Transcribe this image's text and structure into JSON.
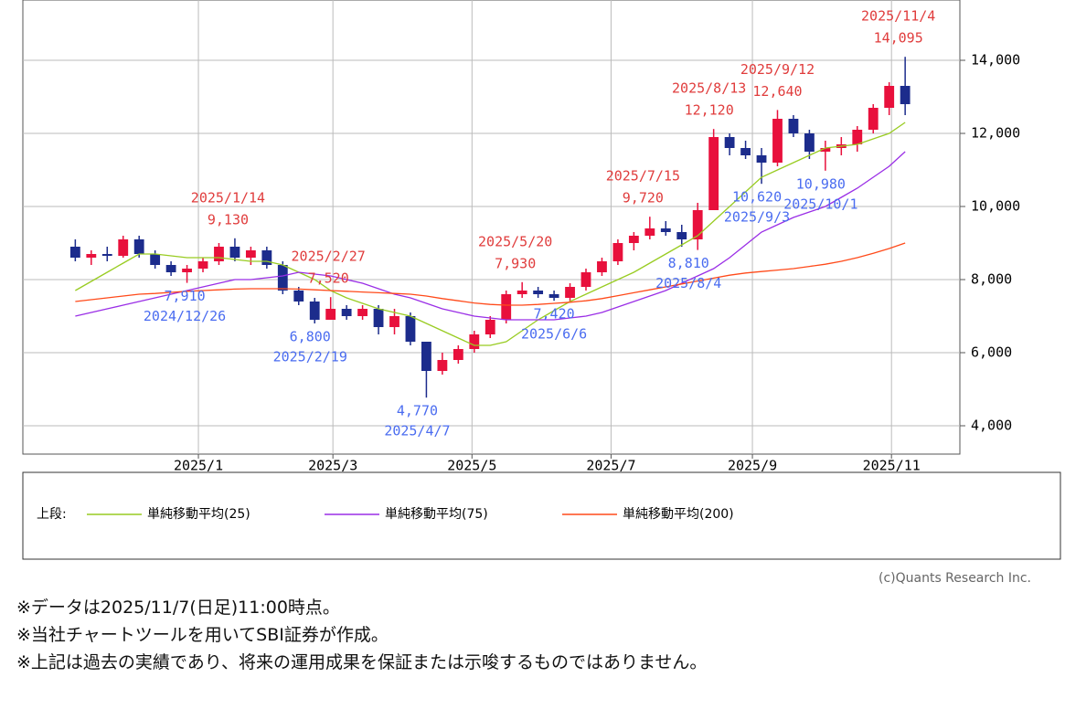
{
  "chart_data": {
    "type": "candlestick",
    "x": [
      "2024/11/8",
      "2024/11/15",
      "2024/11/22",
      "2024/11/29",
      "2024/12/6",
      "2024/12/13",
      "2024/12/20",
      "2024/12/27",
      "2025/1/3",
      "2025/1/10",
      "2025/1/17",
      "2025/1/24",
      "2025/1/31",
      "2025/2/7",
      "2025/2/14",
      "2025/2/21",
      "2025/2/28",
      "2025/3/7",
      "2025/3/14",
      "2025/3/21",
      "2025/3/28",
      "2025/4/4",
      "2025/4/11",
      "2025/4/18",
      "2025/4/25",
      "2025/5/2",
      "2025/5/9",
      "2025/5/16",
      "2025/5/23",
      "2025/5/30",
      "2025/6/6",
      "2025/6/13",
      "2025/6/20",
      "2025/6/27",
      "2025/7/4",
      "2025/7/11",
      "2025/7/18",
      "2025/7/25",
      "2025/8/1",
      "2025/8/8",
      "2025/8/15",
      "2025/8/22",
      "2025/8/29",
      "2025/9/5",
      "2025/9/12",
      "2025/9/19",
      "2025/9/26",
      "2025/10/3",
      "2025/10/10",
      "2025/10/17",
      "2025/10/24",
      "2025/10/31",
      "2025/11/7"
    ],
    "open": [
      8900,
      8600,
      8700,
      8650,
      9100,
      8700,
      8400,
      8200,
      8300,
      8500,
      8900,
      8600,
      8800,
      8400,
      7700,
      7400,
      6900,
      7200,
      7000,
      7200,
      6700,
      7000,
      6300,
      5500,
      5800,
      6100,
      6500,
      6900,
      7600,
      7700,
      7600,
      7500,
      7800,
      8200,
      8500,
      9000,
      9200,
      9400,
      9300,
      9100,
      9900,
      11900,
      11600,
      11400,
      11200,
      12400,
      12000,
      11500,
      11600,
      11700,
      12100,
      12700,
      13300
    ],
    "high": [
      9100,
      8800,
      8900,
      9200,
      9200,
      8800,
      8500,
      8400,
      8600,
      9000,
      9130,
      8900,
      8900,
      8500,
      7800,
      7500,
      7520,
      7300,
      7300,
      7300,
      7200,
      7100,
      6300,
      6000,
      6200,
      6600,
      7000,
      7700,
      7930,
      7800,
      7700,
      7900,
      8300,
      8600,
      9100,
      9300,
      9720,
      9600,
      9500,
      10100,
      12120,
      12000,
      11800,
      11600,
      12640,
      12500,
      12100,
      11800,
      11900,
      12200,
      12800,
      13400,
      14095
    ],
    "low": [
      8500,
      8400,
      8500,
      8600,
      8600,
      8300,
      8100,
      7910,
      8200,
      8400,
      8500,
      8400,
      8300,
      7600,
      7300,
      6800,
      6900,
      6900,
      6900,
      6500,
      6500,
      6200,
      4770,
      5400,
      5700,
      6000,
      6400,
      6800,
      7500,
      7500,
      7420,
      7400,
      7700,
      8100,
      8400,
      8800,
      9100,
      9200,
      8900,
      8810,
      9900,
      11400,
      11300,
      10620,
      11100,
      11900,
      11300,
      10980,
      11400,
      11500,
      12000,
      12500,
      12500
    ],
    "close": [
      8600,
      8700,
      8650,
      9100,
      8700,
      8400,
      8200,
      8300,
      8500,
      8900,
      8600,
      8800,
      8400,
      7700,
      7400,
      6900,
      7200,
      7000,
      7200,
      6700,
      7000,
      6300,
      5500,
      5800,
      6100,
      6500,
      6900,
      7600,
      7700,
      7600,
      7500,
      7800,
      8200,
      8500,
      9000,
      9200,
      9400,
      9300,
      9100,
      9900,
      11900,
      11600,
      11400,
      11200,
      12400,
      12000,
      11500,
      11600,
      11700,
      12100,
      12700,
      13300,
      12800
    ],
    "up_color": "#e8103c",
    "down_color": "#1c2c8c",
    "series": [
      {
        "name": "単純移動平均(25)",
        "color": "#99cc22",
        "values": [
          7700,
          7950,
          8200,
          8450,
          8700,
          8700,
          8650,
          8600,
          8600,
          8600,
          8550,
          8500,
          8500,
          8400,
          8200,
          8000,
          7700,
          7500,
          7350,
          7200,
          7100,
          7000,
          6800,
          6600,
          6400,
          6200,
          6200,
          6300,
          6600,
          6900,
          7150,
          7400,
          7600,
          7800,
          8000,
          8200,
          8450,
          8700,
          8950,
          9200,
          9600,
          10000,
          10400,
          10800,
          11000,
          11200,
          11400,
          11600,
          11650,
          11700,
          11850,
          12000,
          12300
        ]
      },
      {
        "name": "単純移動平均(75)",
        "color": "#9a2ee6",
        "values": [
          7000,
          7100,
          7200,
          7300,
          7400,
          7500,
          7600,
          7700,
          7800,
          7900,
          8000,
          8000,
          8050,
          8100,
          8200,
          8150,
          8100,
          8000,
          7900,
          7750,
          7600,
          7500,
          7350,
          7200,
          7100,
          7000,
          6950,
          6900,
          6900,
          6900,
          6900,
          6950,
          7000,
          7100,
          7250,
          7400,
          7550,
          7700,
          7900,
          8100,
          8300,
          8600,
          8950,
          9300,
          9500,
          9700,
          9850,
          10000,
          10250,
          10500,
          10800,
          11100,
          11500
        ]
      },
      {
        "name": "単純移動平均(200)",
        "color": "#ff4a1a",
        "values": [
          7400,
          7450,
          7500,
          7550,
          7600,
          7620,
          7650,
          7680,
          7700,
          7720,
          7740,
          7750,
          7750,
          7750,
          7740,
          7720,
          7700,
          7680,
          7660,
          7640,
          7620,
          7600,
          7550,
          7480,
          7420,
          7360,
          7320,
          7300,
          7300,
          7320,
          7350,
          7380,
          7420,
          7480,
          7560,
          7640,
          7720,
          7800,
          7880,
          7960,
          8040,
          8120,
          8180,
          8220,
          8260,
          8300,
          8360,
          8420,
          8500,
          8600,
          8720,
          8850,
          9000
        ]
      }
    ],
    "ylim": [
      3225,
      15650
    ],
    "yticks": [
      {
        "value": 4000,
        "label": "4,000"
      },
      {
        "value": 6000,
        "label": "6,000"
      },
      {
        "value": 8000,
        "label": "8,000"
      },
      {
        "value": 10000,
        "label": "10,000"
      },
      {
        "value": 12000,
        "label": "12,000"
      },
      {
        "value": 14000,
        "label": "14,000"
      }
    ],
    "xlim": [
      "2024/10/16",
      "2025/12/1"
    ],
    "xticks": [
      {
        "value": "2025/1/1",
        "label": "2025/1"
      },
      {
        "value": "2025/3/1",
        "label": "2025/3"
      },
      {
        "value": "2025/5/1",
        "label": "2025/5"
      },
      {
        "value": "2025/7/1",
        "label": "2025/7"
      },
      {
        "value": "2025/9/1",
        "label": "2025/9"
      },
      {
        "value": "2025/11/1",
        "label": "2025/11"
      }
    ],
    "grid": true,
    "legend_title": "上段:",
    "annotations": [
      {
        "kind": "high",
        "date": "2025/1/14",
        "value": 9130,
        "label": "9,130"
      },
      {
        "kind": "high",
        "date": "2025/2/27",
        "value": 7520,
        "label": "7,520"
      },
      {
        "kind": "high",
        "date": "2025/5/20",
        "value": 7930,
        "label": "7,930"
      },
      {
        "kind": "high",
        "date": "2025/7/15",
        "value": 9720,
        "label": "9,720"
      },
      {
        "kind": "high",
        "date": "2025/8/13",
        "value": 12120,
        "label": "12,120"
      },
      {
        "kind": "high",
        "date": "2025/9/12",
        "value": 12640,
        "label": "12,640"
      },
      {
        "kind": "high",
        "date": "2025/11/4",
        "value": 14095,
        "label": "14,095"
      },
      {
        "kind": "low",
        "date": "2024/12/26",
        "value": 7910,
        "label": "7,910"
      },
      {
        "kind": "low",
        "date": "2025/2/19",
        "value": 6800,
        "label": "6,800"
      },
      {
        "kind": "low",
        "date": "2025/4/7",
        "value": 4770,
        "label": "4,770"
      },
      {
        "kind": "low",
        "date": "2025/6/6",
        "value": 7420,
        "label": "7,420"
      },
      {
        "kind": "low",
        "date": "2025/8/4",
        "value": 8810,
        "label": "8,810"
      },
      {
        "kind": "low",
        "date": "2025/9/3",
        "value": 10620,
        "label": "10,620"
      },
      {
        "kind": "low",
        "date": "2025/10/1",
        "value": 10980,
        "label": "10,980"
      }
    ],
    "high_color": "#e03c3c",
    "low_color": "#4a6cf0"
  },
  "copyright": "(c)Quants Research Inc.",
  "notes": [
    "※データは2025/11/7(日足)11:00時点。",
    "※当社チャートツールを用いてSBI証券が作成。",
    "※上記は過去の実績であり、将来の運用成果を保証または示唆するものではありません。"
  ]
}
